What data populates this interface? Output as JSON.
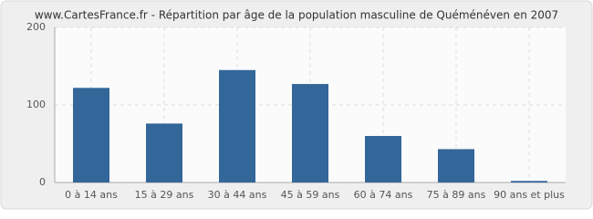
{
  "chart_data": {
    "type": "bar",
    "title": "www.CartesFrance.fr - Répartition par âge de la population masculine de Quéménéven en 2007",
    "categories": [
      "0 à 14 ans",
      "15 à 29 ans",
      "30 à 44 ans",
      "45 à 59 ans",
      "60 à 74 ans",
      "75 à 89 ans",
      "90 ans et plus"
    ],
    "values": [
      122,
      76,
      145,
      127,
      60,
      43,
      2
    ],
    "color": "#336699",
    "ylim": [
      0,
      200
    ],
    "yticks": [
      0,
      100,
      200
    ],
    "grid": true
  }
}
